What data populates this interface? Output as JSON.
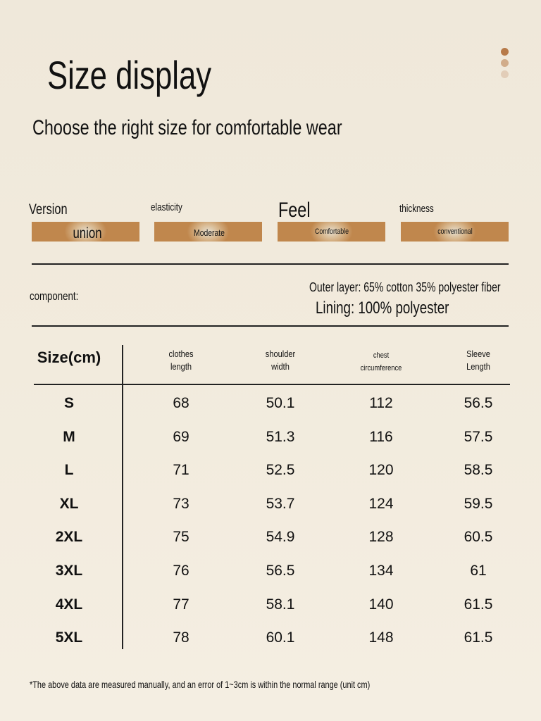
{
  "header": {
    "title": "Size display",
    "subtitle": "Choose the right size for comfortable wear"
  },
  "attributes": [
    {
      "label": "Version",
      "value": "union"
    },
    {
      "label": "elasticity",
      "value": "Moderate"
    },
    {
      "label": "Feel",
      "value": "Comfortable"
    },
    {
      "label": "thickness",
      "value": "conventional"
    }
  ],
  "component": {
    "label": "component:",
    "lines": [
      "Outer layer: 65% cotton 35% polyester fiber",
      "Lining: 100% polyester"
    ]
  },
  "table": {
    "columns": [
      "Size(cm)",
      "clothes length",
      "shoulder width",
      "chest circumference",
      "Sleeve Length"
    ],
    "rows": [
      [
        "S",
        "68",
        "50.1",
        "112",
        "56.5"
      ],
      [
        "M",
        "69",
        "51.3",
        "116",
        "57.5"
      ],
      [
        "L",
        "71",
        "52.5",
        "120",
        "58.5"
      ],
      [
        "XL",
        "73",
        "53.7",
        "124",
        "59.5"
      ],
      [
        "2XL",
        "75",
        "54.9",
        "128",
        "60.5"
      ],
      [
        "3XL",
        "76",
        "56.5",
        "134",
        "61"
      ],
      [
        "4XL",
        "77",
        "58.1",
        "140",
        "61.5"
      ],
      [
        "5XL",
        "78",
        "60.1",
        "148",
        "61.5"
      ]
    ]
  },
  "footnote": "*The above data are measured manually, and an error of 1~3cm is within the normal range (unit cm)"
}
